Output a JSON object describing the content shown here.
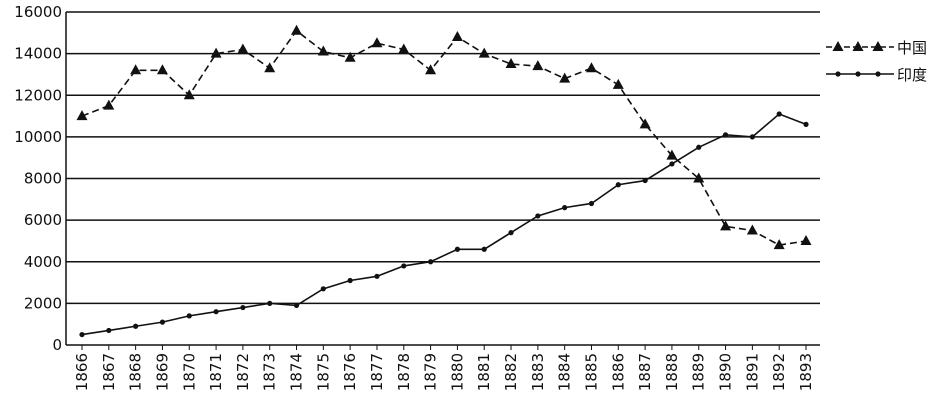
{
  "chart_data": {
    "type": "line",
    "categories": [
      "1866",
      "1867",
      "1868",
      "1869",
      "1870",
      "1871",
      "1872",
      "1873",
      "1874",
      "1875",
      "1876",
      "1877",
      "1878",
      "1879",
      "1880",
      "1881",
      "1882",
      "1883",
      "1884",
      "1885",
      "1886",
      "1887",
      "1888",
      "1889",
      "1890",
      "1891",
      "1892",
      "1893"
    ],
    "series": [
      {
        "name": "中国",
        "color": "#111111",
        "marker": "triangle",
        "dashed": true,
        "values": [
          11000,
          11500,
          13200,
          13200,
          12000,
          14000,
          14200,
          13300,
          15100,
          14100,
          13800,
          14500,
          14200,
          13200,
          14800,
          14000,
          13500,
          13400,
          12800,
          13300,
          12500,
          10600,
          9100,
          8000,
          5700,
          5500,
          4800,
          5000
        ]
      },
      {
        "name": "印度",
        "color": "#111111",
        "marker": "circle",
        "dashed": false,
        "values": [
          500,
          700,
          900,
          1100,
          1400,
          1600,
          1800,
          2000,
          1900,
          2700,
          3100,
          3300,
          3800,
          4000,
          4600,
          4600,
          5400,
          6200,
          6600,
          6800,
          7700,
          7900,
          8700,
          9500,
          10100,
          10000,
          11100,
          10600
        ]
      }
    ],
    "ylim": [
      0,
      16000
    ],
    "yticks": [
      0,
      2000,
      4000,
      6000,
      8000,
      10000,
      12000,
      14000,
      16000
    ],
    "grid": true,
    "legend": "right"
  }
}
